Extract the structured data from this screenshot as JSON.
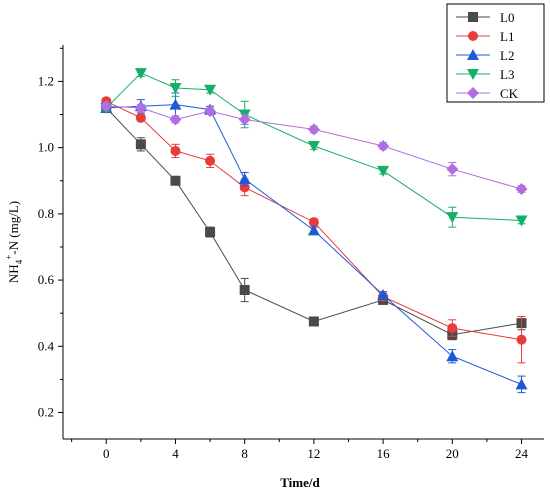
{
  "chart_data": {
    "type": "line",
    "title": "",
    "xlabel": "Time/d",
    "ylabel_parts": {
      "nh": "NH",
      "sub": "4",
      "sup": "+",
      "rest": "-N (mg/L)"
    },
    "x_ticks": [
      0,
      4,
      8,
      12,
      16,
      20,
      24
    ],
    "x_tick_labels": [
      "0",
      "4",
      "8",
      "12",
      "16",
      "20",
      "24"
    ],
    "y_ticks": [
      0.2,
      0.4,
      0.6,
      0.8,
      1.0,
      1.2
    ],
    "y_tick_labels": [
      "0.2",
      "0.4",
      "0.6",
      "0.8",
      "1.0",
      "1.2"
    ],
    "xlim": [
      -2.5,
      25.3
    ],
    "ylim": [
      0.12,
      1.31
    ],
    "grid": false,
    "legend_position": "top-right",
    "series": [
      {
        "name": "L0",
        "color": "#4a4a4a",
        "marker": "square",
        "x": [
          0,
          2,
          4,
          6,
          8,
          12,
          16,
          20,
          24
        ],
        "y": [
          1.12,
          1.01,
          0.9,
          0.745,
          0.57,
          0.475,
          0.54,
          0.435,
          0.47
        ],
        "err": [
          0.01,
          0.02,
          0.01,
          0.015,
          0.035,
          0.01,
          0.01,
          0.015,
          0.02
        ]
      },
      {
        "name": "L1",
        "color": "#e83c3c",
        "marker": "circle",
        "x": [
          0,
          2,
          4,
          6,
          8,
          12,
          16,
          20,
          24
        ],
        "y": [
          1.14,
          1.09,
          0.99,
          0.96,
          0.88,
          0.775,
          0.55,
          0.455,
          0.42
        ],
        "err": [
          0.01,
          0.01,
          0.02,
          0.02,
          0.025,
          0.01,
          0.01,
          0.025,
          0.07
        ]
      },
      {
        "name": "L2",
        "color": "#1c5bd6",
        "marker": "triangle-up",
        "x": [
          0,
          2,
          4,
          6,
          8,
          12,
          16,
          20,
          24
        ],
        "y": [
          1.12,
          1.125,
          1.13,
          1.115,
          0.905,
          0.75,
          0.555,
          0.37,
          0.285
        ],
        "err": [
          0.01,
          0.02,
          0.035,
          0.01,
          0.02,
          0.01,
          0.01,
          0.02,
          0.025
        ]
      },
      {
        "name": "L3",
        "color": "#15b067",
        "marker": "triangle-down",
        "x": [
          0,
          2,
          4,
          6,
          8,
          12,
          16,
          20,
          24
        ],
        "y": [
          1.12,
          1.225,
          1.18,
          1.175,
          1.1,
          1.005,
          0.93,
          0.79,
          0.78
        ],
        "err": [
          0.01,
          0.01,
          0.025,
          0.01,
          0.04,
          0.01,
          0.01,
          0.03,
          0.01
        ]
      },
      {
        "name": "CK",
        "color": "#b06ee0",
        "marker": "diamond",
        "x": [
          0,
          2,
          4,
          6,
          8,
          12,
          16,
          20,
          24
        ],
        "y": [
          1.125,
          1.12,
          1.085,
          1.11,
          1.085,
          1.055,
          1.005,
          0.935,
          0.875
        ],
        "err": [
          0.01,
          0.01,
          0.01,
          0.01,
          0.015,
          0.01,
          0.01,
          0.02,
          0.01
        ]
      }
    ]
  }
}
